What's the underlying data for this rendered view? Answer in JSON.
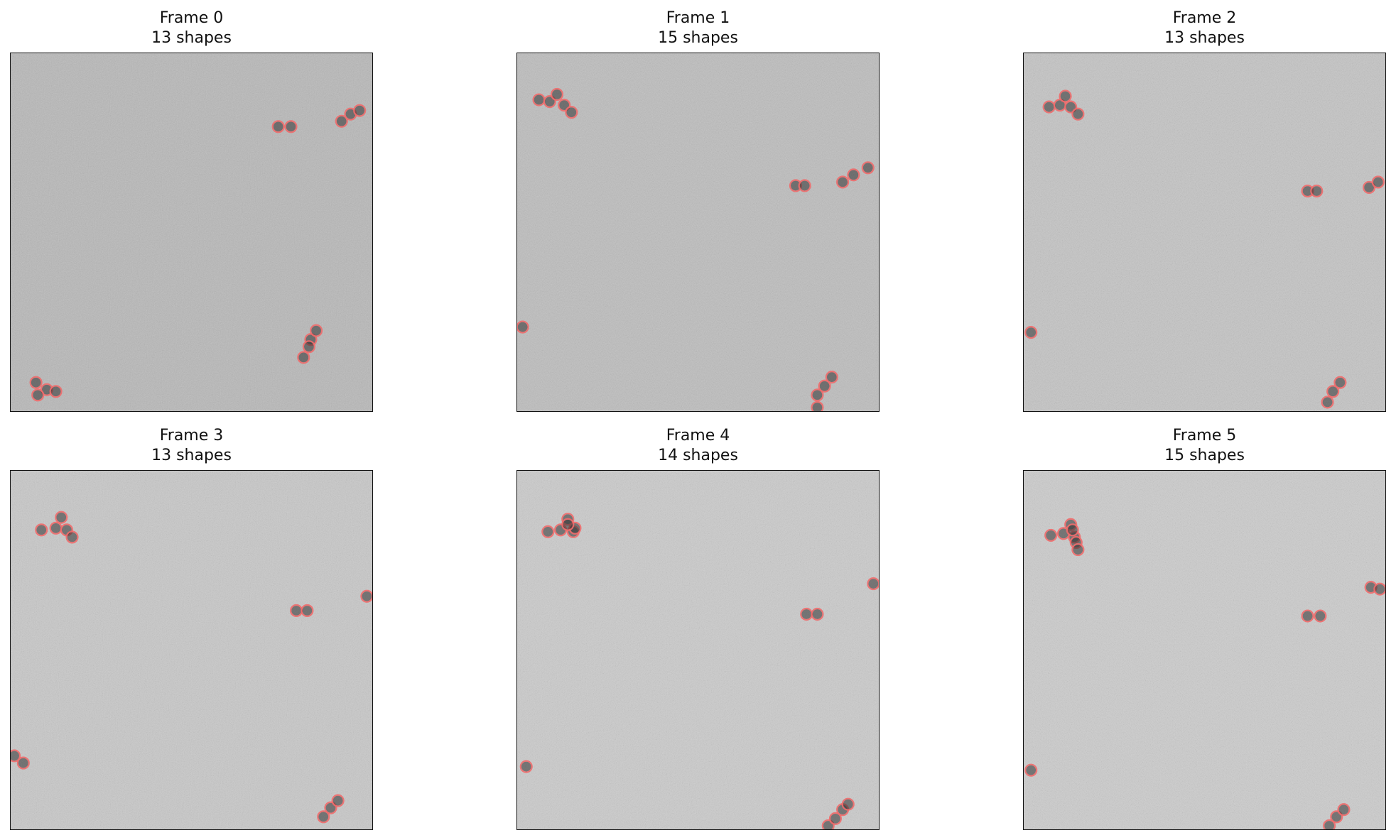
{
  "colors": {
    "background": "#ffffff",
    "marker": "#f06a6a",
    "blob": "#2f2f2f",
    "frame_border": "#111111"
  },
  "frames": [
    {
      "title": "Frame 0",
      "count_label": "13 shapes",
      "tone": "#b8b8b8",
      "detections": [
        [
          0.74,
          0.205
        ],
        [
          0.775,
          0.205
        ],
        [
          0.915,
          0.19
        ],
        [
          0.94,
          0.17
        ],
        [
          0.965,
          0.16
        ],
        [
          0.83,
          0.8
        ],
        [
          0.845,
          0.775
        ],
        [
          0.825,
          0.82
        ],
        [
          0.81,
          0.85
        ],
        [
          0.07,
          0.92
        ],
        [
          0.1,
          0.94
        ],
        [
          0.125,
          0.945
        ],
        [
          0.075,
          0.955
        ]
      ]
    },
    {
      "title": "Frame 1",
      "count_label": "15 shapes",
      "tone": "#bdbdbd",
      "detections": [
        [
          0.06,
          0.13
        ],
        [
          0.09,
          0.135
        ],
        [
          0.11,
          0.115
        ],
        [
          0.13,
          0.145
        ],
        [
          0.15,
          0.165
        ],
        [
          0.77,
          0.37
        ],
        [
          0.795,
          0.37
        ],
        [
          0.9,
          0.36
        ],
        [
          0.93,
          0.34
        ],
        [
          0.97,
          0.32
        ],
        [
          0.015,
          0.765
        ],
        [
          0.83,
          0.955
        ],
        [
          0.85,
          0.93
        ],
        [
          0.87,
          0.905
        ],
        [
          0.83,
          0.99
        ]
      ]
    },
    {
      "title": "Frame 2",
      "count_label": "13 shapes",
      "tone": "#c4c4c4",
      "detections": [
        [
          0.07,
          0.15
        ],
        [
          0.1,
          0.145
        ],
        [
          0.115,
          0.12
        ],
        [
          0.13,
          0.15
        ],
        [
          0.15,
          0.17
        ],
        [
          0.785,
          0.385
        ],
        [
          0.81,
          0.385
        ],
        [
          0.955,
          0.375
        ],
        [
          0.98,
          0.36
        ],
        [
          0.02,
          0.78
        ],
        [
          0.84,
          0.975
        ],
        [
          0.855,
          0.945
        ],
        [
          0.875,
          0.92
        ]
      ]
    },
    {
      "title": "Frame 3",
      "count_label": "13 shapes",
      "tone": "#c8c8c8",
      "detections": [
        [
          0.085,
          0.165
        ],
        [
          0.125,
          0.16
        ],
        [
          0.14,
          0.13
        ],
        [
          0.155,
          0.165
        ],
        [
          0.17,
          0.185
        ],
        [
          0.79,
          0.39
        ],
        [
          0.82,
          0.39
        ],
        [
          0.985,
          0.35
        ],
        [
          0.01,
          0.795
        ],
        [
          0.035,
          0.815
        ],
        [
          0.865,
          0.965
        ],
        [
          0.885,
          0.94
        ],
        [
          0.905,
          0.92
        ]
      ]
    },
    {
      "title": "Frame 4",
      "count_label": "14 shapes",
      "tone": "#cbcbcb",
      "detections": [
        [
          0.085,
          0.17
        ],
        [
          0.12,
          0.165
        ],
        [
          0.14,
          0.135
        ],
        [
          0.155,
          0.17
        ],
        [
          0.16,
          0.16
        ],
        [
          0.8,
          0.4
        ],
        [
          0.83,
          0.4
        ],
        [
          0.985,
          0.315
        ],
        [
          0.025,
          0.825
        ],
        [
          0.86,
          0.99
        ],
        [
          0.88,
          0.97
        ],
        [
          0.9,
          0.945
        ],
        [
          0.915,
          0.93
        ],
        [
          0.14,
          0.15
        ]
      ]
    },
    {
      "title": "Frame 5",
      "count_label": "15 shapes",
      "tone": "#cccccc",
      "detections": [
        [
          0.075,
          0.18
        ],
        [
          0.11,
          0.175
        ],
        [
          0.13,
          0.15
        ],
        [
          0.14,
          0.185
        ],
        [
          0.145,
          0.2
        ],
        [
          0.15,
          0.22
        ],
        [
          0.785,
          0.405
        ],
        [
          0.82,
          0.405
        ],
        [
          0.96,
          0.325
        ],
        [
          0.985,
          0.33
        ],
        [
          0.02,
          0.835
        ],
        [
          0.845,
          0.99
        ],
        [
          0.865,
          0.965
        ],
        [
          0.885,
          0.945
        ],
        [
          0.135,
          0.165
        ]
      ]
    }
  ]
}
